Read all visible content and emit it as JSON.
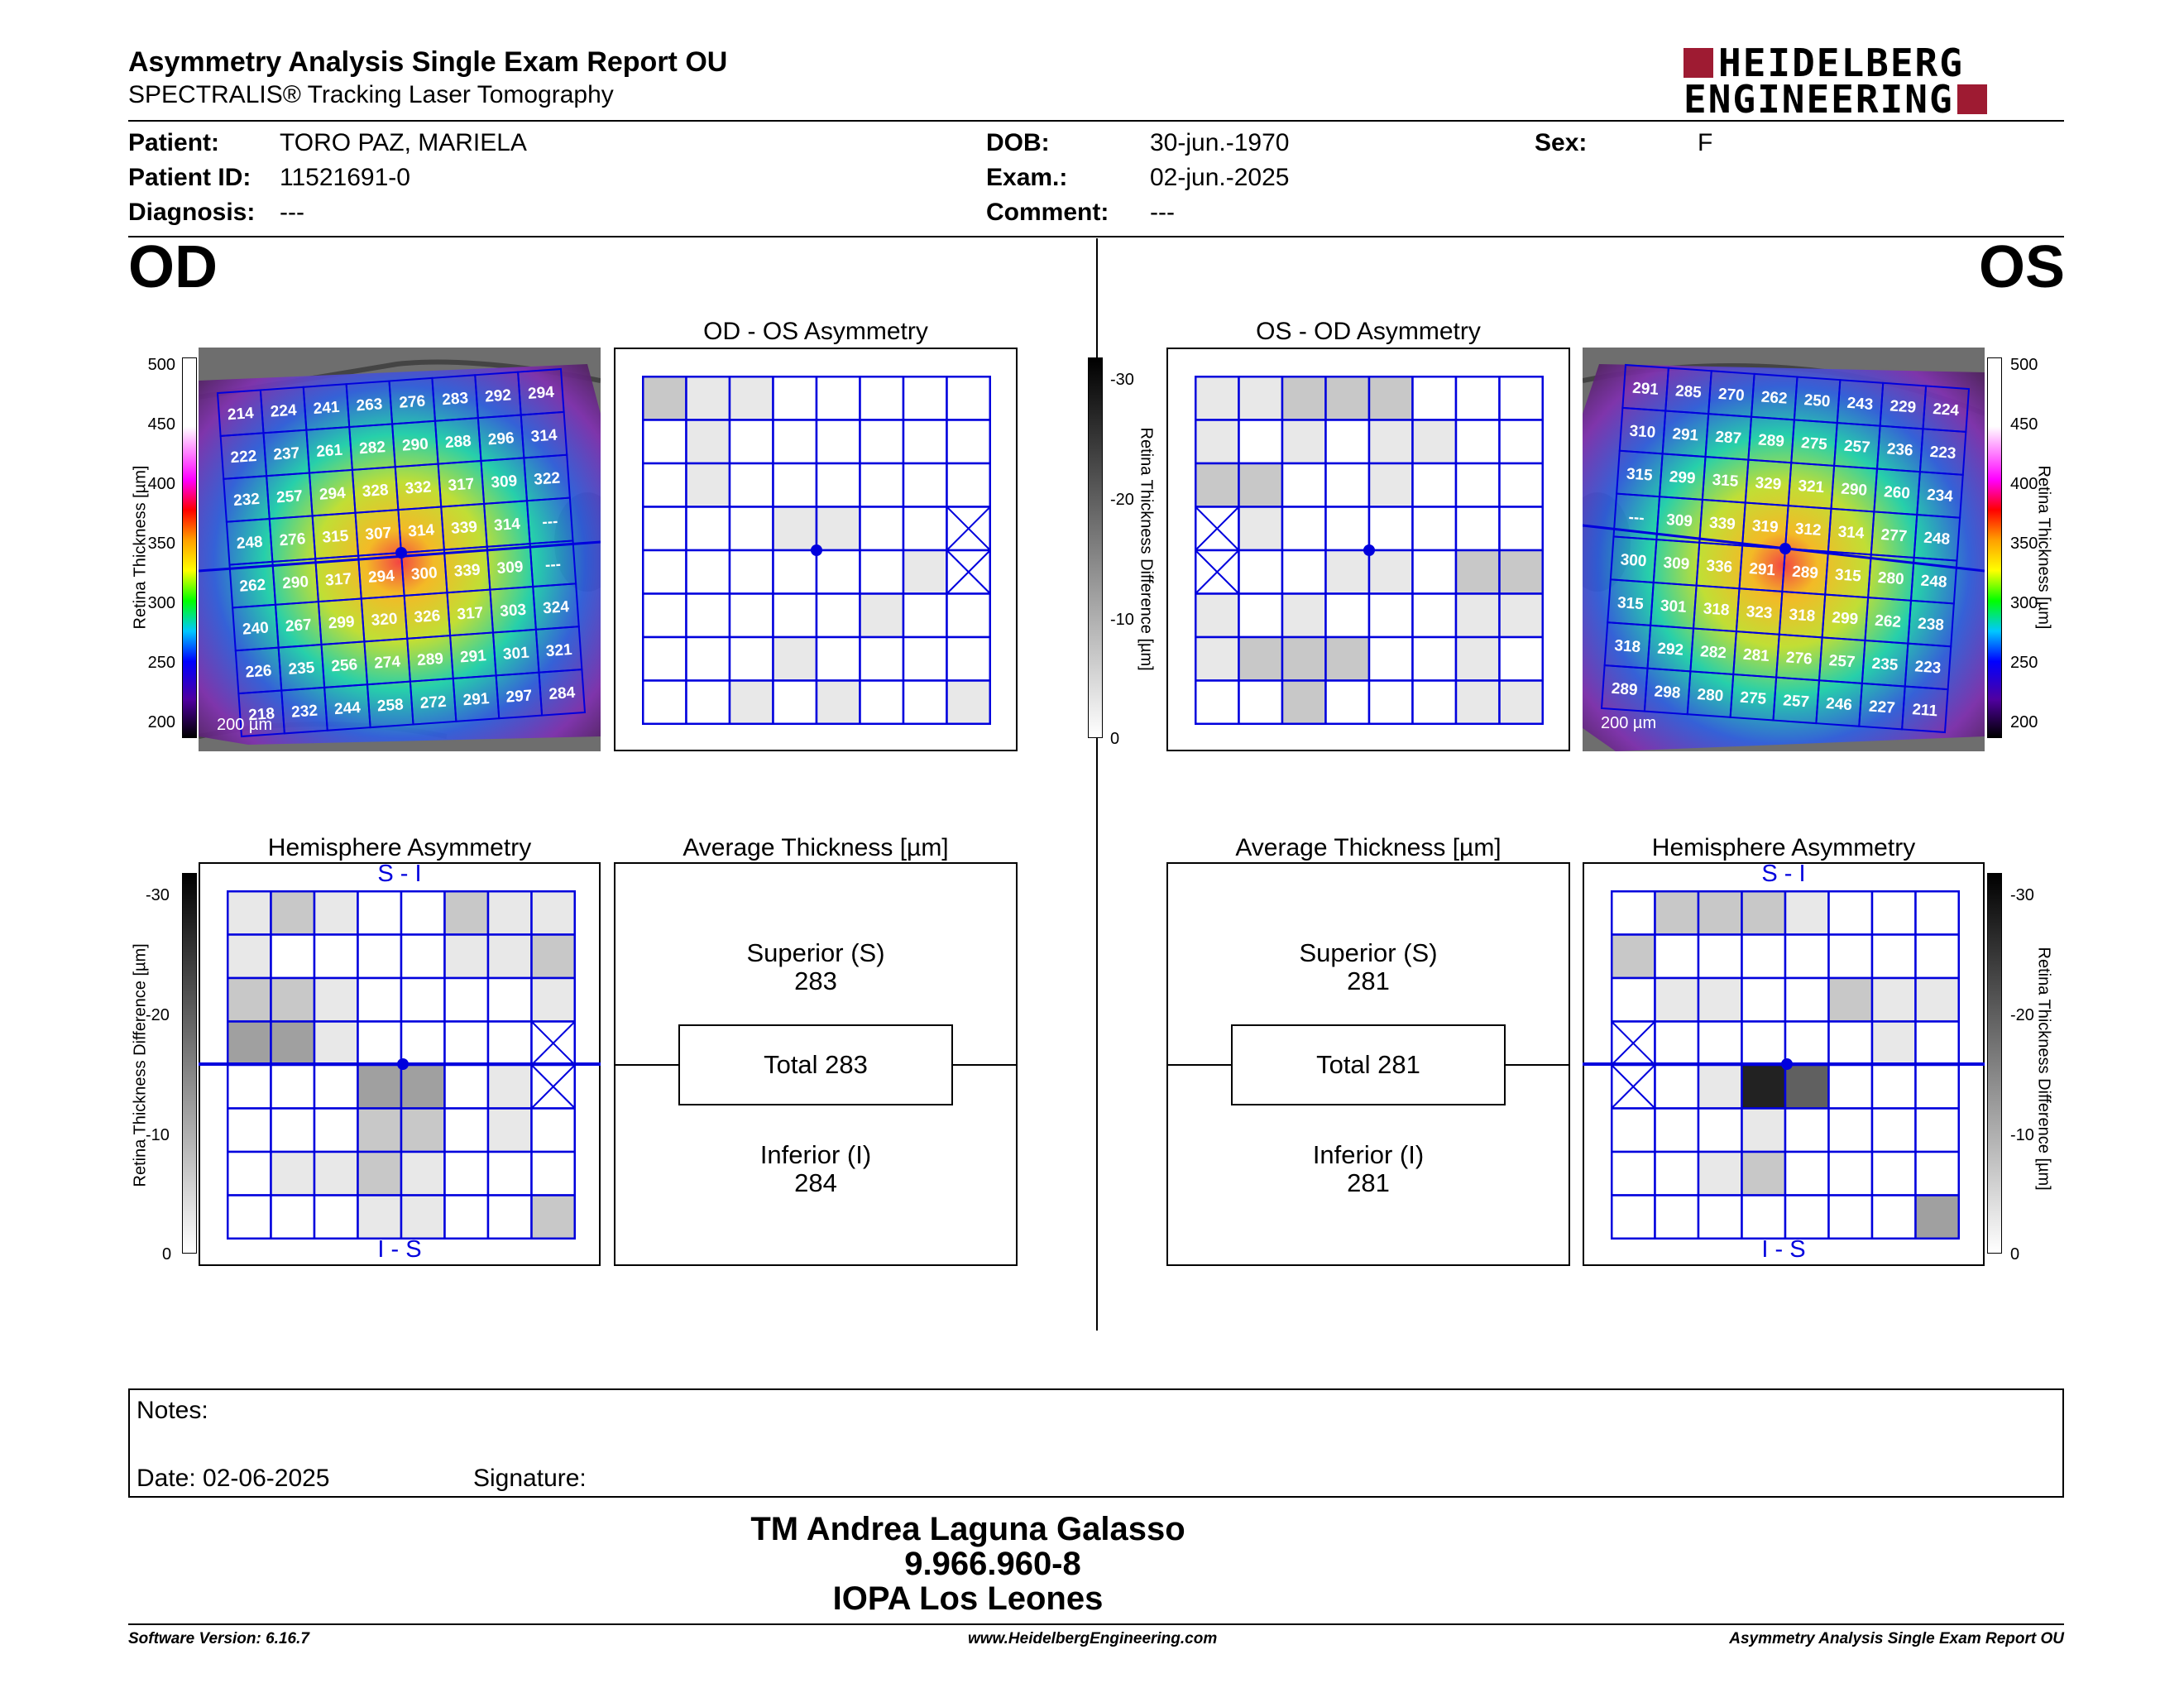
{
  "header": {
    "title": "Asymmetry Analysis Single Exam Report OU",
    "subtitle": "SPECTRALIS® Tracking Laser Tomography",
    "logo_line1": "HEIDELBERG",
    "logo_line2": "ENGINEERING",
    "logo_color": "#9e1b32"
  },
  "patient": {
    "patient_label": "Patient:",
    "patient_value": "TORO PAZ, MARIELA",
    "id_label": "Patient ID:",
    "id_value": "11521691-0",
    "diagnosis_label": "Diagnosis:",
    "diagnosis_value": "---",
    "dob_label": "DOB:",
    "dob_value": "30-jun.-1970",
    "exam_label": "Exam.:",
    "exam_value": "02-jun.-2025",
    "comment_label": "Comment:",
    "comment_value": "---",
    "sex_label": "Sex:",
    "sex_value": "F"
  },
  "od": {
    "eye_label": "OD",
    "asym_title": "OD - OS Asymmetry",
    "hemi_title": "Hemisphere Asymmetry",
    "avg_title": "Average Thickness [µm]",
    "scale_label": "200 µm",
    "superior_label": "Superior (S)",
    "superior_value": "283",
    "total_label": "Total 283",
    "inferior_label": "Inferior (I)",
    "inferior_value": "284",
    "si_label": "S - I",
    "is_label": "I - S",
    "thickness_grid": [
      [
        "214",
        "224",
        "241",
        "263",
        "276",
        "283",
        "292",
        "294"
      ],
      [
        "222",
        "237",
        "261",
        "282",
        "290",
        "288",
        "296",
        "314"
      ],
      [
        "232",
        "257",
        "294",
        "328",
        "332",
        "317",
        "309",
        "322"
      ],
      [
        "248",
        "276",
        "315",
        "307",
        "314",
        "339",
        "314",
        "---"
      ],
      [
        "262",
        "290",
        "317",
        "294",
        "300",
        "339",
        "309",
        "---"
      ],
      [
        "240",
        "267",
        "299",
        "320",
        "326",
        "317",
        "303",
        "324"
      ],
      [
        "226",
        "235",
        "256",
        "274",
        "289",
        "291",
        "301",
        "321"
      ],
      [
        "218",
        "232",
        "244",
        "258",
        "272",
        "291",
        "297",
        "284"
      ]
    ],
    "asym_shades": [
      [
        2,
        1,
        1,
        0,
        0,
        0,
        0,
        0
      ],
      [
        0,
        1,
        0,
        0,
        0,
        0,
        0,
        0
      ],
      [
        0,
        1,
        0,
        0,
        0,
        0,
        0,
        0
      ],
      [
        0,
        0,
        0,
        1,
        1,
        0,
        0,
        -1
      ],
      [
        0,
        0,
        0,
        0,
        0,
        0,
        1,
        -1
      ],
      [
        0,
        0,
        0,
        0,
        0,
        1,
        0,
        0
      ],
      [
        0,
        0,
        0,
        1,
        0,
        0,
        0,
        0
      ],
      [
        0,
        0,
        1,
        0,
        1,
        0,
        0,
        1
      ]
    ],
    "hemi_shades": [
      [
        1,
        2,
        1,
        0,
        0,
        2,
        1,
        1
      ],
      [
        1,
        0,
        0,
        0,
        0,
        1,
        1,
        2
      ],
      [
        2,
        2,
        1,
        0,
        0,
        0,
        0,
        1
      ],
      [
        3,
        3,
        1,
        0,
        0,
        0,
        0,
        -1
      ],
      [
        0,
        0,
        0,
        3,
        3,
        0,
        1,
        -1
      ],
      [
        0,
        0,
        0,
        2,
        2,
        0,
        1,
        0
      ],
      [
        0,
        1,
        1,
        2,
        1,
        0,
        0,
        0
      ],
      [
        0,
        0,
        0,
        1,
        1,
        0,
        0,
        2
      ]
    ]
  },
  "os": {
    "eye_label": "OS",
    "asym_title": "OS - OD Asymmetry",
    "hemi_title": "Hemisphere Asymmetry",
    "avg_title": "Average Thickness [µm]",
    "scale_label": "200 µm",
    "superior_label": "Superior (S)",
    "superior_value": "281",
    "total_label": "Total 281",
    "inferior_label": "Inferior (I)",
    "inferior_value": "281",
    "si_label": "S - I",
    "is_label": "I - S",
    "thickness_grid": [
      [
        "291",
        "285",
        "270",
        "262",
        "250",
        "243",
        "229",
        "224"
      ],
      [
        "310",
        "291",
        "287",
        "289",
        "275",
        "257",
        "236",
        "223"
      ],
      [
        "315",
        "299",
        "315",
        "329",
        "321",
        "290",
        "260",
        "234"
      ],
      [
        "---",
        "309",
        "339",
        "319",
        "312",
        "314",
        "277",
        "248"
      ],
      [
        "300",
        "309",
        "336",
        "291",
        "289",
        "315",
        "280",
        "248"
      ],
      [
        "315",
        "301",
        "318",
        "323",
        "318",
        "299",
        "262",
        "238"
      ],
      [
        "318",
        "292",
        "282",
        "281",
        "276",
        "257",
        "235",
        "223"
      ],
      [
        "289",
        "298",
        "280",
        "275",
        "257",
        "246",
        "227",
        "211"
      ]
    ],
    "asym_shades": [
      [
        1,
        1,
        2,
        2,
        2,
        0,
        0,
        0
      ],
      [
        1,
        0,
        1,
        0,
        1,
        1,
        0,
        0
      ],
      [
        2,
        2,
        0,
        0,
        1,
        0,
        0,
        0
      ],
      [
        -1,
        1,
        0,
        0,
        0,
        0,
        0,
        0
      ],
      [
        -1,
        0,
        0,
        1,
        1,
        0,
        2,
        2
      ],
      [
        1,
        0,
        1,
        0,
        0,
        0,
        1,
        1
      ],
      [
        1,
        2,
        2,
        2,
        0,
        0,
        1,
        0
      ],
      [
        0,
        0,
        2,
        0,
        0,
        0,
        1,
        1
      ]
    ],
    "hemi_shades": [
      [
        0,
        2,
        2,
        2,
        1,
        0,
        0,
        0
      ],
      [
        2,
        0,
        0,
        0,
        0,
        0,
        0,
        0
      ],
      [
        0,
        1,
        1,
        0,
        0,
        2,
        1,
        1
      ],
      [
        -1,
        0,
        0,
        0,
        0,
        0,
        1,
        0
      ],
      [
        -1,
        0,
        1,
        5,
        4,
        0,
        0,
        0
      ],
      [
        0,
        0,
        0,
        1,
        0,
        0,
        0,
        0
      ],
      [
        0,
        0,
        1,
        2,
        0,
        0,
        0,
        0
      ],
      [
        0,
        0,
        0,
        0,
        0,
        0,
        0,
        3
      ]
    ]
  },
  "scales": {
    "thickness_label": "Retina Thickness [µm]",
    "thickness_ticks": [
      "500",
      "450",
      "400",
      "350",
      "300",
      "250",
      "200"
    ],
    "diff_label": "Retina Thickness Difference [µm]",
    "diff_ticks": [
      "-30",
      "-20",
      "-10",
      "0"
    ]
  },
  "notes": {
    "notes_label": "Notes:",
    "date_label": "Date: 02-06-2025",
    "signature_label": "Signature:"
  },
  "signature_block": {
    "name": "TM Andrea Laguna Galasso",
    "id": "9.966.960-8",
    "institution": "IOPA Los Leones"
  },
  "footer": {
    "software": "Software Version: 6.16.7",
    "website": "www.HeidelbergEngineering.com",
    "report": "Asymmetry Analysis Single Exam Report OU"
  }
}
